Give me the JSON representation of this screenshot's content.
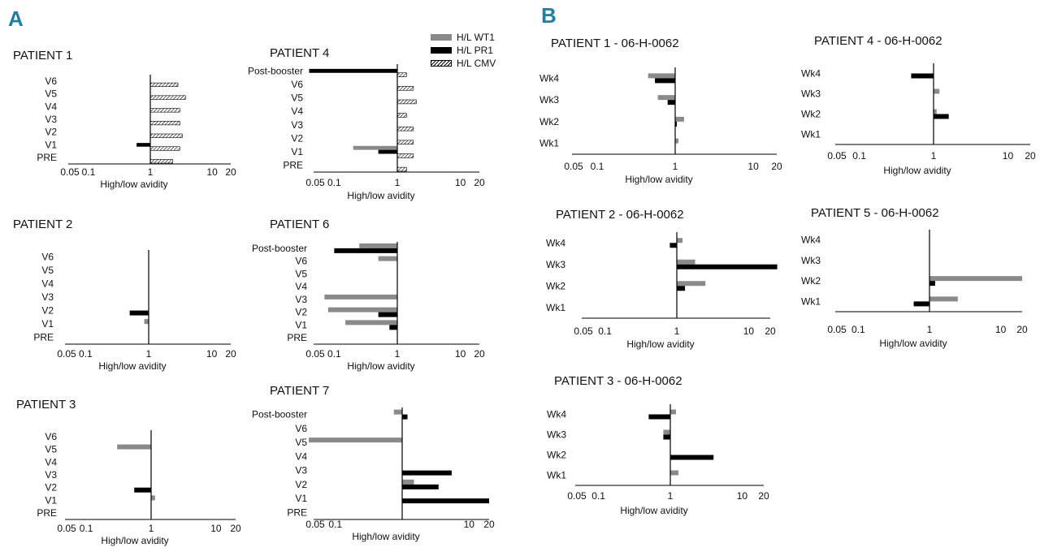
{
  "figure": {
    "panel_a_label": "A",
    "panel_b_label": "B",
    "legend": [
      {
        "key": "wt1",
        "label": "H/L WT1",
        "color": "#8a8a8a"
      },
      {
        "key": "pr1",
        "label": "H/L PR1",
        "color": "#000000"
      },
      {
        "key": "cmv",
        "label": "H/L CMV",
        "pattern": "hatched"
      }
    ]
  },
  "chart_data": [
    {
      "id": "A-p1",
      "type": "bar",
      "orientation": "horizontal",
      "scale": "log",
      "title": "PATIENT 1",
      "xlabel": "High/low avidity",
      "ticks": [
        0.05,
        0.1,
        1,
        10,
        20
      ],
      "tick_labels": [
        "0.05",
        "0.1",
        "1",
        "10",
        "20"
      ],
      "categories": [
        "PRE",
        "V1",
        "V2",
        "V3",
        "V4",
        "V5",
        "V6"
      ],
      "series": [
        {
          "name": "H/L WT1",
          "values": [
            null,
            null,
            null,
            null,
            null,
            null,
            null
          ]
        },
        {
          "name": "H/L PR1",
          "values": [
            null,
            0.6,
            null,
            null,
            null,
            null,
            null
          ]
        },
        {
          "name": "H/L CMV",
          "values": [
            2.3,
            3.0,
            3.3,
            3.0,
            3.0,
            3.7,
            2.8
          ]
        }
      ]
    },
    {
      "id": "A-p4",
      "type": "bar",
      "orientation": "horizontal",
      "scale": "log",
      "title": "PATIENT 4",
      "xlabel": "High/low avidity",
      "ticks": [
        0.05,
        0.1,
        1,
        10,
        20
      ],
      "tick_labels": [
        "0.05",
        "0.1",
        "1",
        "10",
        "20"
      ],
      "categories": [
        "PRE",
        "V1",
        "V2",
        "V3",
        "V4",
        "V5",
        "V6",
        "Post-booster"
      ],
      "series": [
        {
          "name": "H/L WT1",
          "values": [
            null,
            0.2,
            null,
            null,
            null,
            null,
            null,
            null
          ]
        },
        {
          "name": "H/L PR1",
          "values": [
            null,
            0.5,
            null,
            null,
            null,
            null,
            null,
            0.04
          ]
        },
        {
          "name": "H/L CMV",
          "values": [
            1.4,
            1.8,
            1.8,
            1.8,
            1.4,
            2.0,
            1.8,
            1.4
          ]
        }
      ]
    },
    {
      "id": "A-p2",
      "type": "bar",
      "orientation": "horizontal",
      "scale": "log",
      "title": "PATIENT 2",
      "xlabel": "High/low avidity",
      "ticks": [
        0.05,
        0.1,
        1,
        10,
        20
      ],
      "tick_labels": [
        "0.05",
        "0.1",
        "1",
        "10",
        "20"
      ],
      "categories": [
        "PRE",
        "V1",
        "V2",
        "V3",
        "V4",
        "V5",
        "V6"
      ],
      "series": [
        {
          "name": "H/L WT1",
          "values": [
            null,
            0.85,
            null,
            null,
            null,
            null,
            null
          ]
        },
        {
          "name": "H/L PR1",
          "values": [
            null,
            null,
            0.5,
            null,
            null,
            null,
            null
          ]
        }
      ]
    },
    {
      "id": "A-p6",
      "type": "bar",
      "orientation": "horizontal",
      "scale": "log",
      "title": "PATIENT 6",
      "xlabel": "High/low avidity",
      "ticks": [
        0.05,
        0.1,
        1,
        10,
        20
      ],
      "tick_labels": [
        "0.05",
        "0.1",
        "1",
        "10",
        "20"
      ],
      "categories": [
        "PRE",
        "V1",
        "V2",
        "V3",
        "V4",
        "V5",
        "V6",
        "Post-booster"
      ],
      "series": [
        {
          "name": "H/L WT1",
          "values": [
            null,
            0.15,
            0.08,
            0.07,
            null,
            null,
            0.5,
            0.25
          ]
        },
        {
          "name": "H/L PR1",
          "values": [
            null,
            0.75,
            0.5,
            null,
            null,
            null,
            null,
            0.1
          ]
        }
      ]
    },
    {
      "id": "A-p3",
      "type": "bar",
      "orientation": "horizontal",
      "scale": "log",
      "title": "PATIENT 3",
      "xlabel": "High/low avidity",
      "ticks": [
        0.05,
        0.1,
        1,
        10,
        20
      ],
      "tick_labels": [
        "0.05",
        "0.1",
        "1",
        "10",
        "20"
      ],
      "categories": [
        "PRE",
        "V1",
        "V2",
        "V3",
        "V4",
        "V5",
        "V6"
      ],
      "series": [
        {
          "name": "H/L WT1",
          "values": [
            null,
            1.15,
            null,
            null,
            null,
            0.3,
            null
          ]
        },
        {
          "name": "H/L PR1",
          "values": [
            null,
            null,
            0.55,
            null,
            null,
            null,
            null
          ]
        }
      ]
    },
    {
      "id": "A-p7",
      "type": "bar",
      "orientation": "horizontal",
      "scale": "log",
      "title": "PATIENT 7",
      "xlabel": "High/low avidity",
      "ticks": [
        0.05,
        0.1,
        1,
        10,
        20
      ],
      "tick_labels": [
        "0.05",
        "0.1",
        "10",
        "20"
      ],
      "tick_values_labeled": [
        0.05,
        0.1,
        10,
        20
      ],
      "categories": [
        "PRE",
        "V1",
        "V2",
        "V3",
        "V4",
        "V5",
        "V6",
        "Post-booster"
      ],
      "series": [
        {
          "name": "H/L WT1",
          "values": [
            null,
            null,
            1.5,
            null,
            null,
            0.04,
            null,
            0.75
          ]
        },
        {
          "name": "H/L PR1",
          "values": [
            null,
            20,
            3.5,
            5.5,
            null,
            null,
            null,
            1.2
          ]
        }
      ]
    },
    {
      "id": "B-p1",
      "type": "bar",
      "orientation": "horizontal",
      "scale": "log",
      "title": "PATIENT 1 - 06-H-0062",
      "xlabel": "High/low avidity",
      "ticks": [
        0.05,
        0.1,
        1,
        10,
        20
      ],
      "tick_labels": [
        "0.05",
        "0.1",
        "1",
        "10",
        "20"
      ],
      "categories": [
        "Wk1",
        "Wk2",
        "Wk3",
        "Wk4"
      ],
      "series": [
        {
          "name": "H/L WT1",
          "values": [
            1.1,
            1.3,
            0.6,
            0.45
          ]
        },
        {
          "name": "H/L PR1",
          "values": [
            null,
            1.05,
            0.8,
            0.55
          ]
        }
      ]
    },
    {
      "id": "B-p4",
      "type": "bar",
      "orientation": "horizontal",
      "scale": "log",
      "title": "PATIENT 4 - 06-H-0062",
      "xlabel": "High/low avidity",
      "ticks": [
        0.05,
        0.1,
        1,
        10,
        20
      ],
      "tick_labels": [
        "0.05",
        "0.1",
        "1",
        "10",
        "20"
      ],
      "categories": [
        "Wk1",
        "Wk2",
        "Wk3",
        "Wk4"
      ],
      "series": [
        {
          "name": "H/L WT1",
          "values": [
            null,
            1.1,
            1.2,
            null
          ]
        },
        {
          "name": "H/L PR1",
          "values": [
            null,
            1.6,
            null,
            0.5
          ]
        }
      ]
    },
    {
      "id": "B-p2",
      "type": "bar",
      "orientation": "horizontal",
      "scale": "log",
      "title": "PATIENT 2 - 06-H-0062",
      "xlabel": "High/low avidity",
      "ticks": [
        0.05,
        0.1,
        1,
        10,
        20
      ],
      "tick_labels": [
        "0.05",
        "0.1",
        "1",
        "10",
        "20"
      ],
      "categories": [
        "Wk1",
        "Wk2",
        "Wk3",
        "Wk4"
      ],
      "series": [
        {
          "name": "H/L WT1",
          "values": [
            null,
            2.5,
            1.8,
            1.2
          ]
        },
        {
          "name": "H/L PR1",
          "values": [
            null,
            1.3,
            25,
            0.8
          ]
        }
      ]
    },
    {
      "id": "B-p5",
      "type": "bar",
      "orientation": "horizontal",
      "scale": "log",
      "title": "PATIENT 5 - 06-H-0062",
      "xlabel": "High/low avidity",
      "ticks": [
        0.05,
        0.1,
        1,
        10,
        20
      ],
      "tick_labels": [
        "0.05",
        "0.1",
        "1",
        "10",
        "20"
      ],
      "categories": [
        "Wk1",
        "Wk2",
        "Wk3",
        "Wk4"
      ],
      "series": [
        {
          "name": "H/L WT1",
          "values": [
            2.5,
            20,
            null,
            null
          ]
        },
        {
          "name": "H/L PR1",
          "values": [
            0.6,
            1.2,
            null,
            null
          ]
        }
      ]
    },
    {
      "id": "B-p3",
      "type": "bar",
      "orientation": "horizontal",
      "scale": "log",
      "title": "PATIENT 3 - 06-H-0062",
      "xlabel": "High/low avidity",
      "ticks": [
        0.05,
        0.1,
        1,
        10,
        20
      ],
      "tick_labels": [
        "0.05",
        "0.1",
        "1",
        "10",
        "20"
      ],
      "categories": [
        "Wk1",
        "Wk2",
        "Wk3",
        "Wk4"
      ],
      "series": [
        {
          "name": "H/L WT1",
          "values": [
            1.3,
            null,
            0.8,
            1.2
          ]
        },
        {
          "name": "H/L PR1",
          "values": [
            null,
            4.0,
            0.8,
            0.5
          ]
        }
      ]
    }
  ]
}
